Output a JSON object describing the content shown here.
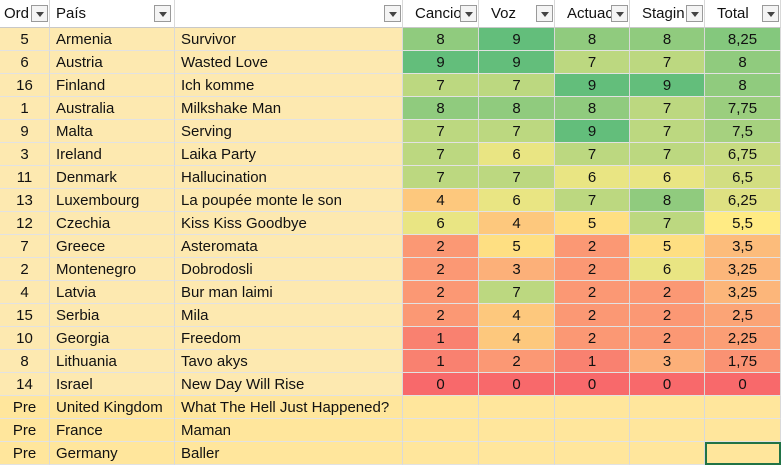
{
  "table": {
    "headers": [
      "Ord",
      "País",
      "Cancio",
      "Voz",
      "Actuac",
      "Stagin",
      "Total"
    ],
    "rows": [
      {
        "ord": "5",
        "country": "Armenia",
        "song": "Survivor",
        "scores": [
          8,
          9,
          8,
          8
        ],
        "total": "8,25"
      },
      {
        "ord": "6",
        "country": "Austria",
        "song": "Wasted Love",
        "scores": [
          9,
          9,
          7,
          7
        ],
        "total": "8"
      },
      {
        "ord": "16",
        "country": "Finland",
        "song": "Ich komme",
        "scores": [
          7,
          7,
          9,
          9
        ],
        "total": "8"
      },
      {
        "ord": "1",
        "country": "Australia",
        "song": "Milkshake Man",
        "scores": [
          8,
          8,
          8,
          7
        ],
        "total": "7,75"
      },
      {
        "ord": "9",
        "country": "Malta",
        "song": "Serving",
        "scores": [
          7,
          7,
          9,
          7
        ],
        "total": "7,5"
      },
      {
        "ord": "3",
        "country": "Ireland",
        "song": "Laika Party",
        "scores": [
          7,
          6,
          7,
          7
        ],
        "total": "6,75"
      },
      {
        "ord": "11",
        "country": "Denmark",
        "song": "Hallucination",
        "scores": [
          7,
          7,
          6,
          6
        ],
        "total": "6,5"
      },
      {
        "ord": "13",
        "country": "Luxembourg",
        "song": "La poupée monte le son",
        "scores": [
          4,
          6,
          7,
          8
        ],
        "total": "6,25"
      },
      {
        "ord": "12",
        "country": "Czechia",
        "song": "Kiss Kiss Goodbye",
        "scores": [
          6,
          4,
          5,
          7
        ],
        "total": "5,5"
      },
      {
        "ord": "7",
        "country": "Greece",
        "song": "Asteromata",
        "scores": [
          2,
          5,
          2,
          5
        ],
        "total": "3,5"
      },
      {
        "ord": "2",
        "country": "Montenegro",
        "song": "Dobrodosli",
        "scores": [
          2,
          3,
          2,
          6
        ],
        "total": "3,25"
      },
      {
        "ord": "4",
        "country": "Latvia",
        "song": "Bur man laimi",
        "scores": [
          2,
          7,
          2,
          2
        ],
        "total": "3,25"
      },
      {
        "ord": "15",
        "country": "Serbia",
        "song": "Mila",
        "scores": [
          2,
          4,
          2,
          2
        ],
        "total": "2,5"
      },
      {
        "ord": "10",
        "country": "Georgia",
        "song": "Freedom",
        "scores": [
          1,
          4,
          2,
          2
        ],
        "total": "2,25"
      },
      {
        "ord": "8",
        "country": "Lithuania",
        "song": "Tavo akys",
        "scores": [
          1,
          2,
          1,
          3
        ],
        "total": "1,75"
      },
      {
        "ord": "14",
        "country": "Israel",
        "song": "New Day Will Rise",
        "scores": [
          0,
          0,
          0,
          0
        ],
        "total": "0"
      },
      {
        "ord": "Pre",
        "country": "United Kingdom",
        "song": "What The Hell Just Happened?"
      },
      {
        "ord": "Pre",
        "country": "France",
        "song": "Maman"
      },
      {
        "ord": "Pre",
        "country": "Germany",
        "song": "Baller"
      }
    ]
  }
}
